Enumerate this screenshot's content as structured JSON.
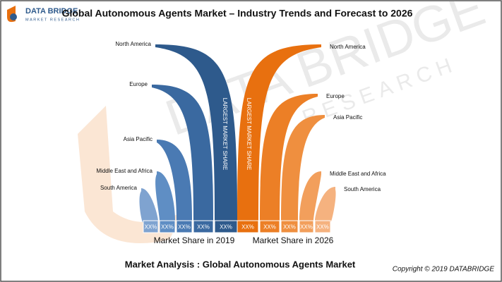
{
  "logo": {
    "name": "DATA BRIDGE",
    "tagline": "MARKET RESEARCH"
  },
  "title": "Global Autonomous Agents Market – Industry Trends and Forecast to 2026",
  "watermark": {
    "name": "DATA BRIDGE",
    "tagline": "RESEARCH"
  },
  "left": {
    "caption": "Market Share in 2019",
    "highlight": "LARGEST MARKET SHARE",
    "regions": [
      {
        "label": "North America",
        "value": "XX%"
      },
      {
        "label": "Europe",
        "value": "XX%"
      },
      {
        "label": "Asia Pacific",
        "value": "XX%"
      },
      {
        "label": "Middle East and Africa",
        "value": "XX%"
      },
      {
        "label": "South America",
        "value": "XX%"
      }
    ]
  },
  "right": {
    "caption": "Market Share in 2026",
    "highlight": "LARGEST MARKET SHARE",
    "regions": [
      {
        "label": "North America",
        "value": "XX%"
      },
      {
        "label": "Europe",
        "value": "XX%"
      },
      {
        "label": "Asia Pacific",
        "value": "XX%"
      },
      {
        "label": "Middle East and Africa",
        "value": "XX%"
      },
      {
        "label": "South America",
        "value": "XX%"
      }
    ]
  },
  "footer": "Market Analysis : Global Autonomous Agents Market",
  "copyright": "Copyright © 2019 DATABRIDGE"
}
